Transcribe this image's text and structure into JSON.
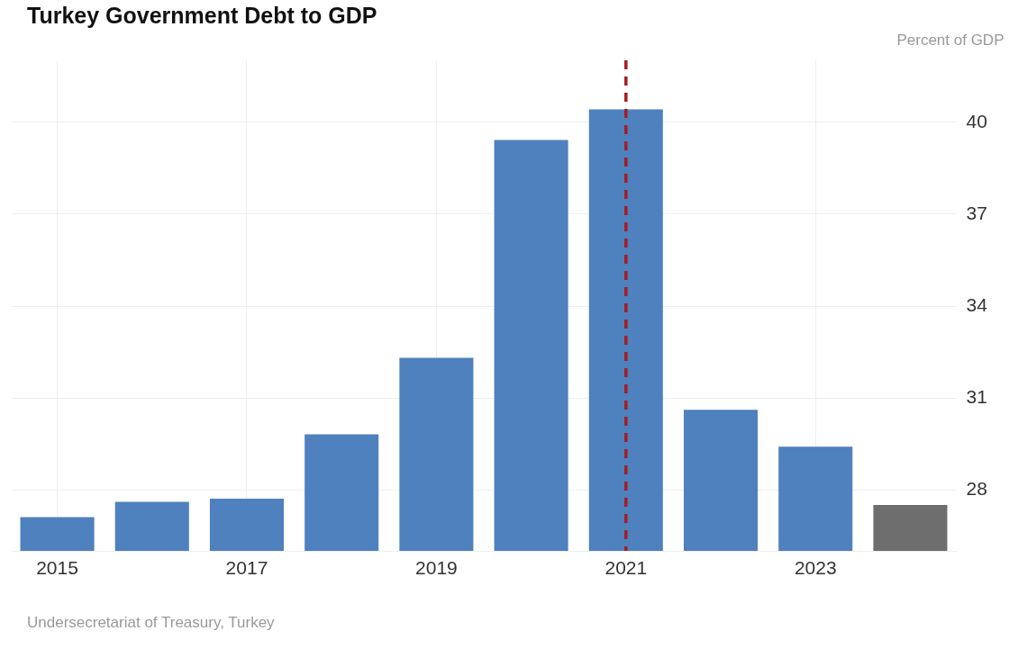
{
  "chart_data": {
    "type": "bar",
    "title": "Turkey Government Debt to GDP",
    "ylabel": "Percent of GDP",
    "categories": [
      "2015",
      null,
      "2017",
      null,
      "2019",
      null,
      "2021",
      null,
      "2023",
      null
    ],
    "values": [
      27.1,
      27.6,
      27.7,
      29.8,
      32.3,
      39.4,
      40.4,
      30.6,
      29.4,
      27.5
    ],
    "colors": [
      "#4e81bd",
      "#4e81bd",
      "#4e81bd",
      "#4e81bd",
      "#4e81bd",
      "#4e81bd",
      "#4e81bd",
      "#4e81bd",
      "#4e81bd",
      "#6e6e6e"
    ],
    "ylim": [
      26,
      42
    ],
    "yticks": [
      28,
      31,
      34,
      37,
      40
    ],
    "grid": true,
    "ref_lines": [
      {
        "axis": "x",
        "value": "2021",
        "color": "#a31d24",
        "line_style": "dashed"
      }
    ],
    "annotations": [
      "Undersecretariat of Treasury, Turkey"
    ]
  }
}
